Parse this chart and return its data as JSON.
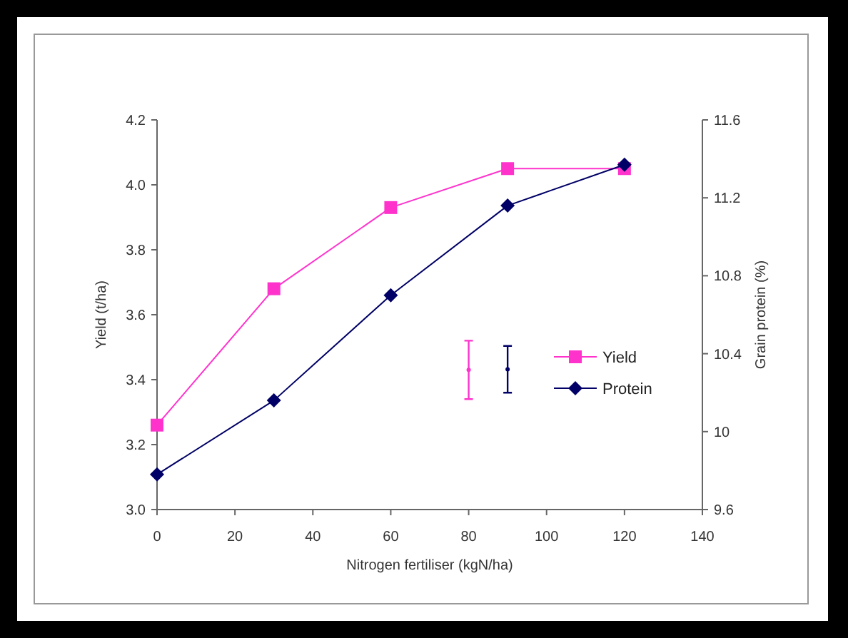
{
  "chart_data": {
    "type": "line",
    "xlabel": "Nitrogen fertiliser (kgN/ha)",
    "ylabel": "Yield (t/ha)",
    "y2label": "Grain protein (%)",
    "x": [
      0,
      30,
      60,
      90,
      120
    ],
    "series": [
      {
        "name": "Yield",
        "color": "#ff33cc",
        "values": [
          3.26,
          3.68,
          3.93,
          4.05,
          4.05
        ],
        "marker": "square"
      },
      {
        "name": "Protein",
        "color": "#000066",
        "values": [
          9.78,
          10.16,
          10.7,
          11.16,
          11.37
        ],
        "marker": "diamond",
        "axis": "y2"
      },
      {
        "type": "scatter",
        "color": "#ff33cc",
        "x": [
          80
        ],
        "values": [
          3.43
        ],
        "errors": [
          0.09
        ]
      },
      {
        "type": "scatter",
        "color": "#000066",
        "x": [
          90
        ],
        "values": [
          10.32
        ],
        "errors": [
          0.12
        ],
        "axis": "y2"
      }
    ],
    "xlim": [
      0,
      140
    ],
    "xticks": [
      0,
      20,
      40,
      60,
      80,
      100,
      120,
      140
    ],
    "ylim": [
      3.0,
      4.2
    ],
    "yticks": [
      {
        "value": 3.0,
        "label": "3.0"
      },
      {
        "value": 3.2,
        "label": "3.2"
      },
      {
        "value": 3.4,
        "label": "3.4"
      },
      {
        "value": 3.6,
        "label": "3.6"
      },
      {
        "value": 3.8,
        "label": "3.8"
      },
      {
        "value": 4.0,
        "label": "4.0"
      },
      {
        "value": 4.2,
        "label": "4.2"
      }
    ],
    "y2lim": [
      9.6,
      11.6
    ],
    "y2ticks": [
      9.6,
      10,
      10.4,
      10.8,
      11.2,
      11.6
    ],
    "grid": false,
    "legend": "right"
  }
}
